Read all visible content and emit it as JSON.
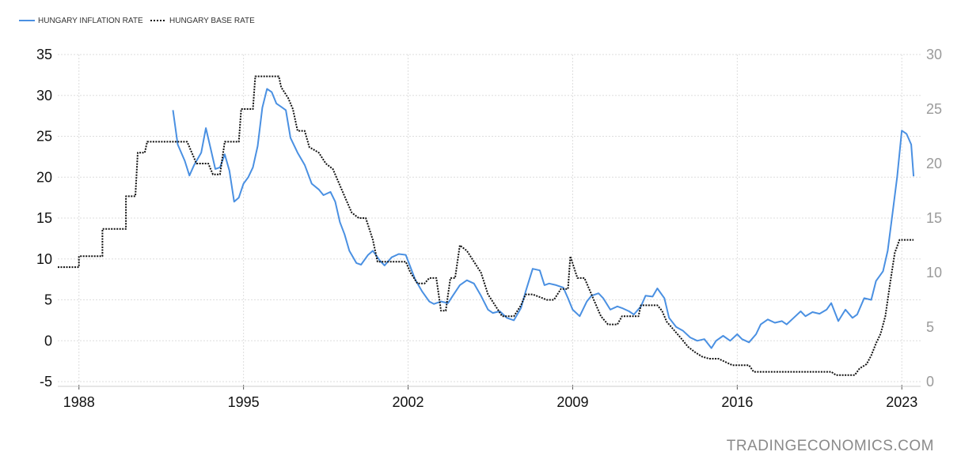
{
  "colors": {
    "inflation": "#4a90e2",
    "base_rate": "#111111",
    "grid": "#dddddd",
    "left_ticks": "#111111",
    "right_ticks": "#9a9a9a"
  },
  "watermark": "TRADINGECONOMICS.COM",
  "chart_data": {
    "type": "line",
    "title": "",
    "xlabel": "",
    "ylabel": "",
    "legend_position": "top-left",
    "grid": true,
    "xlim": [
      1987.1,
      2023.8
    ],
    "x_ticks": [
      1988,
      1995,
      2002,
      2009,
      2016,
      2023
    ],
    "y_left": {
      "lim": [
        -5,
        35
      ],
      "ticks": [
        -5,
        0,
        5,
        10,
        15,
        20,
        25,
        30,
        35
      ]
    },
    "y_right": {
      "lim": [
        0,
        30
      ],
      "ticks": [
        0,
        5,
        10,
        15,
        20,
        25,
        30
      ]
    },
    "series": [
      {
        "name": "HUNGARY INFLATION RATE",
        "axis": "left",
        "style": "solid",
        "points": [
          [
            1992.0,
            28.2
          ],
          [
            1992.2,
            24.0
          ],
          [
            1992.5,
            22.0
          ],
          [
            1992.7,
            20.2
          ],
          [
            1992.9,
            21.5
          ],
          [
            1993.2,
            23.0
          ],
          [
            1993.4,
            26.0
          ],
          [
            1993.6,
            23.5
          ],
          [
            1993.8,
            21.0
          ],
          [
            1994.0,
            21.2
          ],
          [
            1994.2,
            22.8
          ],
          [
            1994.4,
            20.8
          ],
          [
            1994.6,
            17.0
          ],
          [
            1994.8,
            17.5
          ],
          [
            1995.0,
            19.2
          ],
          [
            1995.2,
            20.0
          ],
          [
            1995.4,
            21.2
          ],
          [
            1995.6,
            23.8
          ],
          [
            1995.8,
            28.5
          ],
          [
            1996.0,
            30.8
          ],
          [
            1996.2,
            30.4
          ],
          [
            1996.4,
            29.0
          ],
          [
            1996.6,
            28.6
          ],
          [
            1996.8,
            28.2
          ],
          [
            1997.0,
            24.8
          ],
          [
            1997.3,
            23.0
          ],
          [
            1997.6,
            21.5
          ],
          [
            1997.9,
            19.2
          ],
          [
            1998.2,
            18.5
          ],
          [
            1998.4,
            17.8
          ],
          [
            1998.7,
            18.2
          ],
          [
            1998.9,
            17.0
          ],
          [
            1999.1,
            14.5
          ],
          [
            1999.3,
            13.0
          ],
          [
            1999.5,
            11.0
          ],
          [
            1999.8,
            9.5
          ],
          [
            2000.0,
            9.3
          ],
          [
            2000.3,
            10.5
          ],
          [
            2000.5,
            11.0
          ],
          [
            2000.8,
            9.8
          ],
          [
            2001.0,
            9.2
          ],
          [
            2001.3,
            10.2
          ],
          [
            2001.6,
            10.6
          ],
          [
            2001.9,
            10.5
          ],
          [
            2002.1,
            9.0
          ],
          [
            2002.3,
            7.5
          ],
          [
            2002.6,
            6.0
          ],
          [
            2002.9,
            4.8
          ],
          [
            2003.1,
            4.5
          ],
          [
            2003.4,
            4.8
          ],
          [
            2003.7,
            4.6
          ],
          [
            2003.9,
            5.5
          ],
          [
            2004.2,
            6.8
          ],
          [
            2004.5,
            7.4
          ],
          [
            2004.8,
            7.0
          ],
          [
            2005.1,
            5.5
          ],
          [
            2005.4,
            3.8
          ],
          [
            2005.6,
            3.4
          ],
          [
            2005.9,
            3.6
          ],
          [
            2006.2,
            2.8
          ],
          [
            2006.5,
            2.5
          ],
          [
            2006.8,
            4.0
          ],
          [
            2007.0,
            6.0
          ],
          [
            2007.3,
            8.8
          ],
          [
            2007.6,
            8.6
          ],
          [
            2007.8,
            6.8
          ],
          [
            2008.0,
            7.0
          ],
          [
            2008.3,
            6.8
          ],
          [
            2008.6,
            6.5
          ],
          [
            2008.8,
            5.2
          ],
          [
            2009.0,
            3.8
          ],
          [
            2009.3,
            3.0
          ],
          [
            2009.6,
            4.8
          ],
          [
            2009.8,
            5.5
          ],
          [
            2010.1,
            5.8
          ],
          [
            2010.3,
            5.2
          ],
          [
            2010.6,
            3.8
          ],
          [
            2010.9,
            4.2
          ],
          [
            2011.1,
            4.0
          ],
          [
            2011.4,
            3.6
          ],
          [
            2011.6,
            3.2
          ],
          [
            2011.9,
            4.2
          ],
          [
            2012.1,
            5.5
          ],
          [
            2012.4,
            5.4
          ],
          [
            2012.6,
            6.4
          ],
          [
            2012.9,
            5.2
          ],
          [
            2013.1,
            2.8
          ],
          [
            2013.4,
            1.7
          ],
          [
            2013.7,
            1.2
          ],
          [
            2014.0,
            0.4
          ],
          [
            2014.3,
            0.0
          ],
          [
            2014.6,
            0.2
          ],
          [
            2014.9,
            -0.9
          ],
          [
            2015.1,
            0.0
          ],
          [
            2015.4,
            0.6
          ],
          [
            2015.7,
            0.0
          ],
          [
            2016.0,
            0.8
          ],
          [
            2016.2,
            0.2
          ],
          [
            2016.5,
            -0.2
          ],
          [
            2016.8,
            0.8
          ],
          [
            2017.0,
            2.0
          ],
          [
            2017.3,
            2.6
          ],
          [
            2017.6,
            2.2
          ],
          [
            2017.9,
            2.4
          ],
          [
            2018.1,
            2.0
          ],
          [
            2018.4,
            2.8
          ],
          [
            2018.7,
            3.6
          ],
          [
            2018.9,
            3.0
          ],
          [
            2019.2,
            3.5
          ],
          [
            2019.5,
            3.3
          ],
          [
            2019.8,
            3.8
          ],
          [
            2020.0,
            4.6
          ],
          [
            2020.3,
            2.4
          ],
          [
            2020.6,
            3.8
          ],
          [
            2020.9,
            2.8
          ],
          [
            2021.1,
            3.2
          ],
          [
            2021.4,
            5.2
          ],
          [
            2021.7,
            5.0
          ],
          [
            2021.9,
            7.3
          ],
          [
            2022.2,
            8.5
          ],
          [
            2022.4,
            11.0
          ],
          [
            2022.6,
            15.5
          ],
          [
            2022.8,
            20.0
          ],
          [
            2023.0,
            25.7
          ],
          [
            2023.2,
            25.3
          ],
          [
            2023.4,
            24.0
          ],
          [
            2023.5,
            20.1
          ]
        ]
      },
      {
        "name": "HUNGARY BASE RATE",
        "axis": "right",
        "style": "dotted",
        "points": [
          [
            1987.1,
            10.5
          ],
          [
            1988.0,
            10.5
          ],
          [
            1988.0,
            11.5
          ],
          [
            1989.0,
            11.5
          ],
          [
            1989.0,
            14.0
          ],
          [
            1990.0,
            14.0
          ],
          [
            1990.0,
            17.0
          ],
          [
            1990.4,
            17.0
          ],
          [
            1990.5,
            21.0
          ],
          [
            1990.8,
            21.0
          ],
          [
            1990.9,
            22.0
          ],
          [
            1992.6,
            22.0
          ],
          [
            1992.8,
            21.0
          ],
          [
            1993.0,
            20.0
          ],
          [
            1993.5,
            20.0
          ],
          [
            1993.7,
            19.0
          ],
          [
            1994.0,
            19.0
          ],
          [
            1994.2,
            22.0
          ],
          [
            1994.8,
            22.0
          ],
          [
            1994.9,
            25.0
          ],
          [
            1995.4,
            25.0
          ],
          [
            1995.5,
            28.0
          ],
          [
            1996.5,
            28.0
          ],
          [
            1996.6,
            27.0
          ],
          [
            1996.9,
            26.0
          ],
          [
            1997.1,
            25.0
          ],
          [
            1997.3,
            23.0
          ],
          [
            1997.6,
            23.0
          ],
          [
            1997.8,
            21.5
          ],
          [
            1998.2,
            21.0
          ],
          [
            1998.5,
            20.0
          ],
          [
            1998.8,
            19.5
          ],
          [
            1999.0,
            18.5
          ],
          [
            1999.3,
            17.0
          ],
          [
            1999.6,
            15.5
          ],
          [
            1999.9,
            15.0
          ],
          [
            2000.2,
            15.0
          ],
          [
            2000.5,
            13.0
          ],
          [
            2000.7,
            11.0
          ],
          [
            2001.0,
            11.0
          ],
          [
            2001.6,
            11.0
          ],
          [
            2001.9,
            11.0
          ],
          [
            2002.1,
            10.0
          ],
          [
            2002.4,
            9.0
          ],
          [
            2002.7,
            9.0
          ],
          [
            2002.9,
            9.5
          ],
          [
            2003.2,
            9.5
          ],
          [
            2003.4,
            6.5
          ],
          [
            2003.6,
            6.5
          ],
          [
            2003.8,
            9.5
          ],
          [
            2004.0,
            9.5
          ],
          [
            2004.2,
            12.5
          ],
          [
            2004.5,
            12.0
          ],
          [
            2004.8,
            11.0
          ],
          [
            2005.1,
            10.0
          ],
          [
            2005.4,
            8.0
          ],
          [
            2005.7,
            7.0
          ],
          [
            2006.0,
            6.0
          ],
          [
            2006.2,
            6.0
          ],
          [
            2006.5,
            6.0
          ],
          [
            2006.8,
            7.0
          ],
          [
            2007.0,
            8.0
          ],
          [
            2007.3,
            8.0
          ],
          [
            2007.6,
            7.75
          ],
          [
            2007.9,
            7.5
          ],
          [
            2008.2,
            7.5
          ],
          [
            2008.5,
            8.5
          ],
          [
            2008.8,
            8.5
          ],
          [
            2008.9,
            11.5
          ],
          [
            2009.2,
            9.5
          ],
          [
            2009.5,
            9.5
          ],
          [
            2009.8,
            8.0
          ],
          [
            2010.0,
            7.0
          ],
          [
            2010.2,
            6.0
          ],
          [
            2010.5,
            5.25
          ],
          [
            2010.9,
            5.25
          ],
          [
            2011.1,
            6.0
          ],
          [
            2011.8,
            6.0
          ],
          [
            2011.9,
            7.0
          ],
          [
            2012.6,
            7.0
          ],
          [
            2012.8,
            6.5
          ],
          [
            2013.0,
            5.5
          ],
          [
            2013.3,
            4.75
          ],
          [
            2013.6,
            4.0
          ],
          [
            2013.9,
            3.2
          ],
          [
            2014.2,
            2.7
          ],
          [
            2014.5,
            2.3
          ],
          [
            2014.8,
            2.1
          ],
          [
            2015.2,
            2.1
          ],
          [
            2015.5,
            1.8
          ],
          [
            2015.8,
            1.5
          ],
          [
            2016.5,
            1.5
          ],
          [
            2016.7,
            0.9
          ],
          [
            2020.0,
            0.9
          ],
          [
            2020.2,
            0.6
          ],
          [
            2021.0,
            0.6
          ],
          [
            2021.2,
            1.2
          ],
          [
            2021.5,
            1.6
          ],
          [
            2021.7,
            2.4
          ],
          [
            2021.9,
            3.5
          ],
          [
            2022.1,
            4.4
          ],
          [
            2022.3,
            6.0
          ],
          [
            2022.5,
            9.0
          ],
          [
            2022.7,
            11.8
          ],
          [
            2022.9,
            13.0
          ],
          [
            2023.5,
            13.0
          ]
        ]
      }
    ]
  }
}
